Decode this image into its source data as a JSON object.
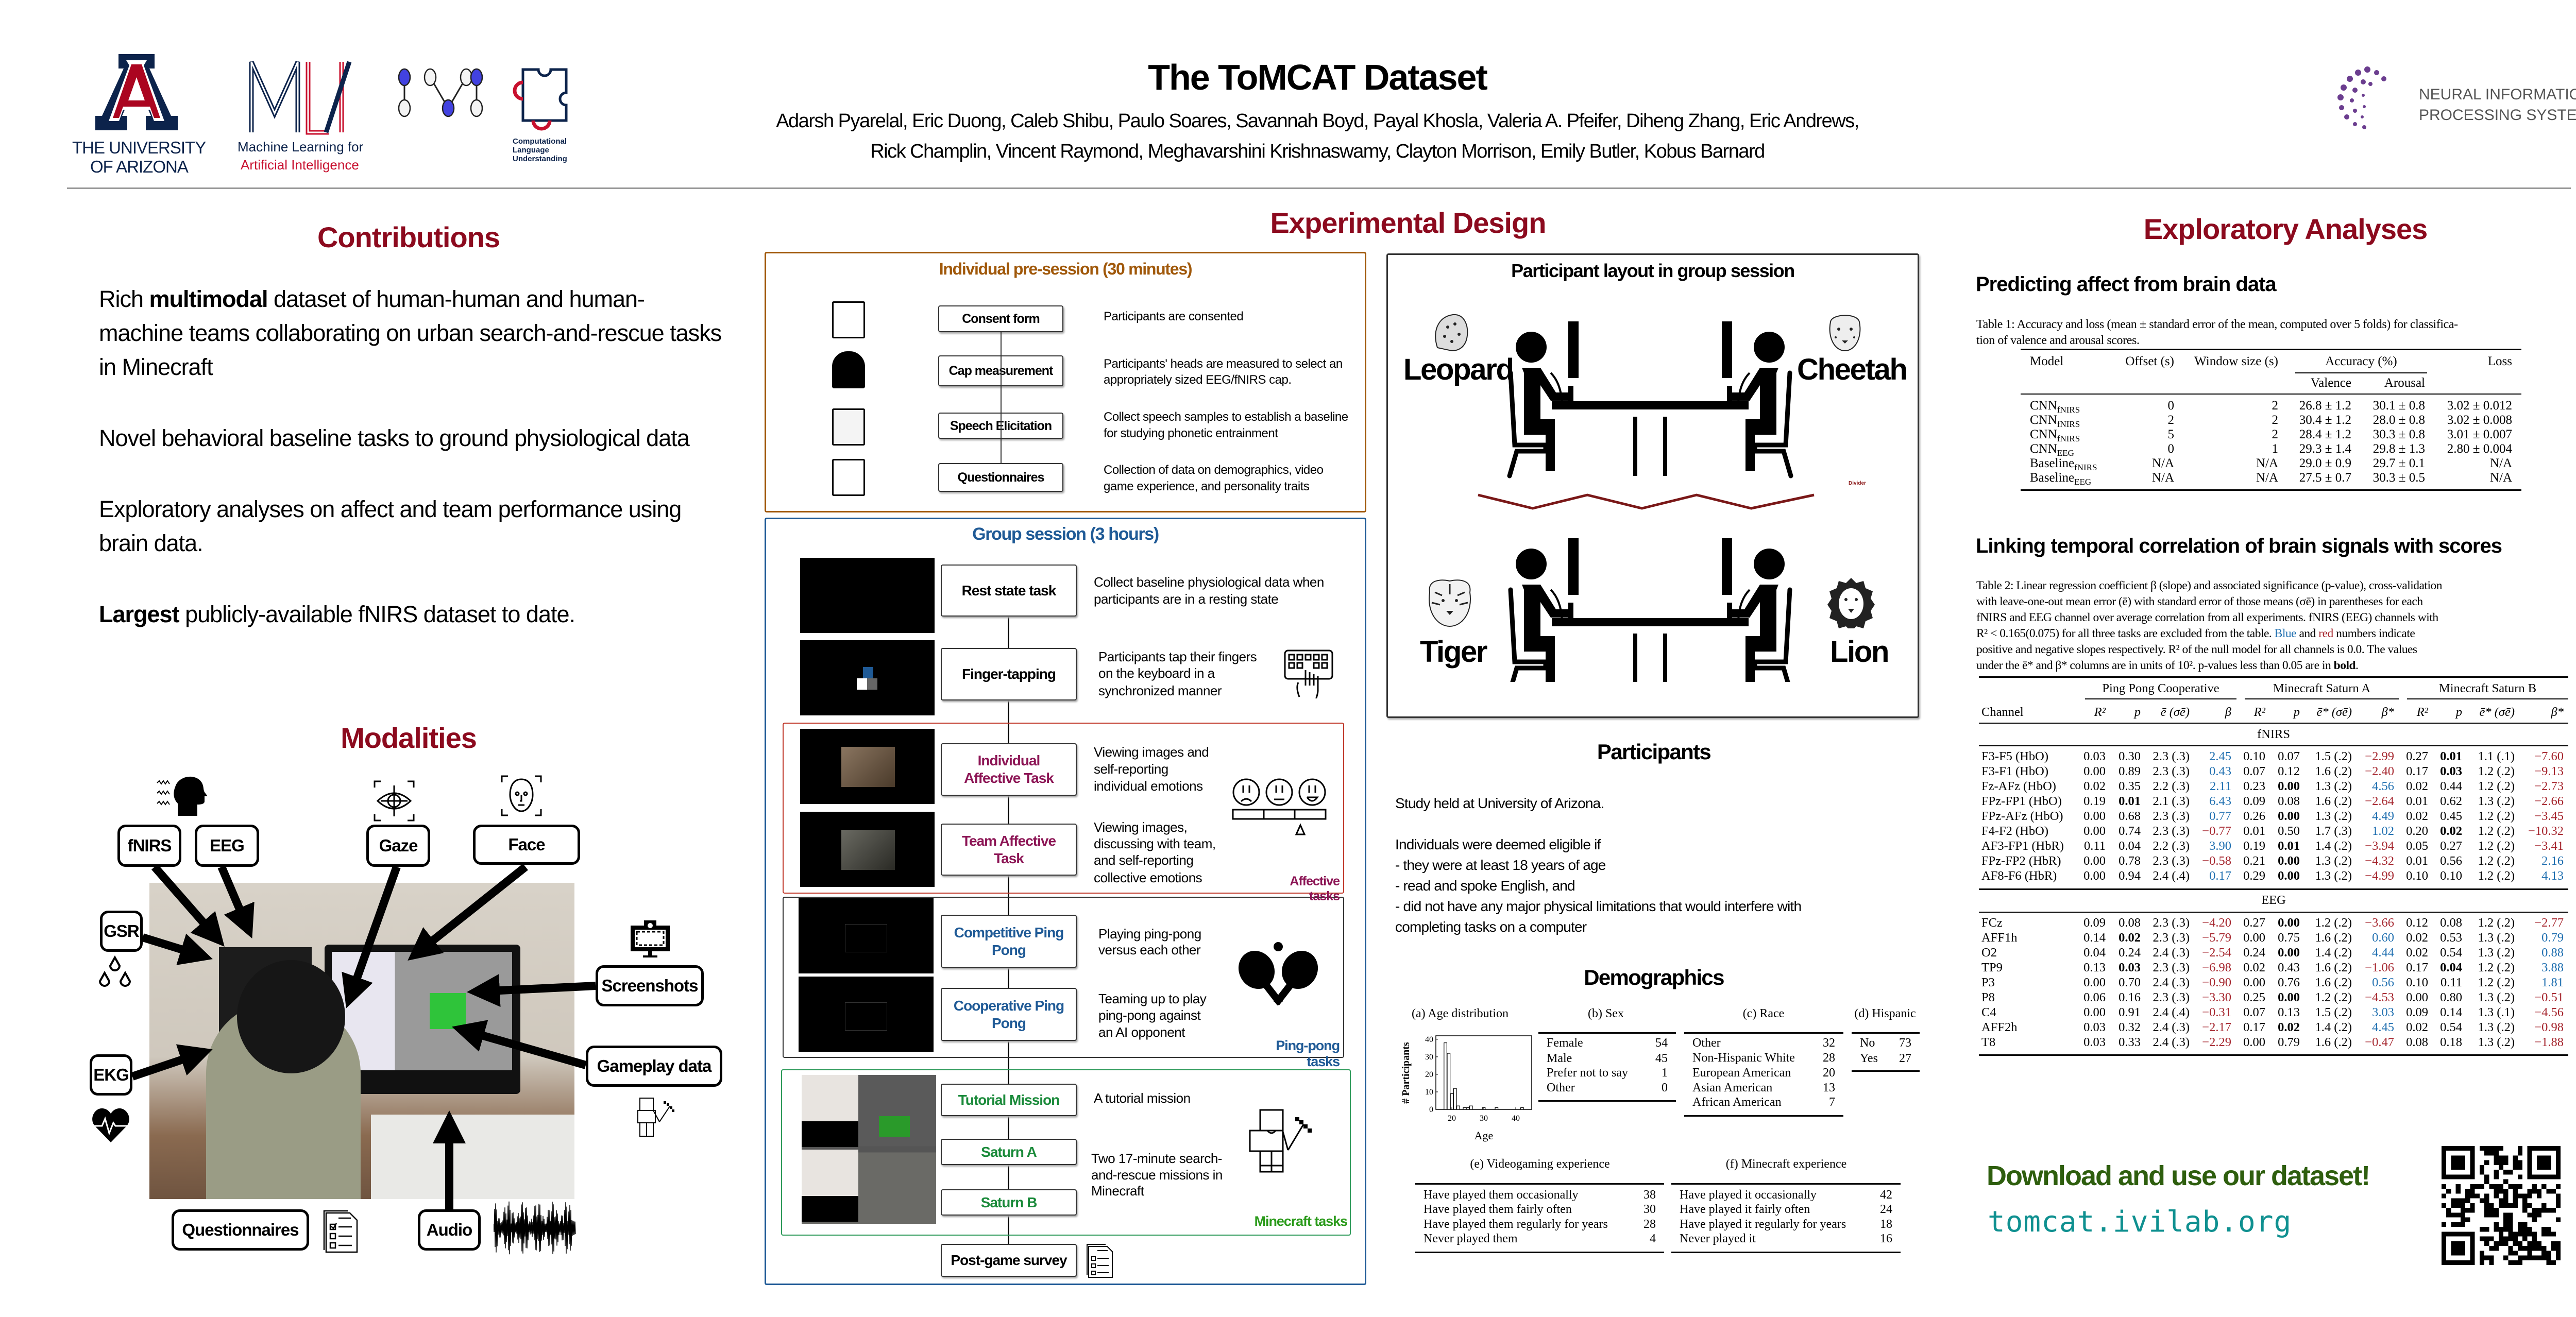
{
  "header": {
    "title": "The ToMCAT Dataset",
    "authors_line1": "Adarsh Pyarelal, Eric Duong, Caleb Shibu, Paulo Soares, Savannah Boyd, Payal Khosla, Valeria A. Pfeifer, Diheng Zhang, Eric Andrews,",
    "authors_line2": "Rick Champlin, Vincent Raymond, Meghavarshini Krishnaswamy, Clayton Morrison, Emily Butler, Kobus Barnard",
    "logos": {
      "ua_line1": "THE UNIVERSITY",
      "ua_line2": "OF ARIZONA",
      "mlai_line1": "Machine Learning for",
      "mlai_line2": "Artificial Intelligence",
      "clu_line1": "Computational",
      "clu_line2": "Language",
      "clu_line3": "Understanding",
      "neurips_line1": "NEURAL INFORMATION",
      "neurips_line2": "PROCESSING SYSTEMS"
    }
  },
  "colors": {
    "heading": "#8c0a1e",
    "presession": "#a0580a",
    "group": "#1f5a96",
    "affective": "#8c1555",
    "minecraft": "#1a8a3a",
    "positive": "#1f6fb0",
    "negative": "#a5252d",
    "download": "#2e5e0e",
    "url": "#0f9090"
  },
  "contributions": {
    "heading": "Contributions",
    "p1": {
      "a": "Rich ",
      "b": "multimodal",
      "c": " dataset of human-human and human-machine teams collaborating on urban search-and-rescue tasks in Minecraft"
    },
    "p2": "Novel behavioral baseline tasks to ground physiological data",
    "p3": "Exploratory analyses on affect and team performance using brain data.",
    "p4": {
      "b": "Largest",
      "c": " publicly-available fNIRS dataset to date."
    }
  },
  "modalities": {
    "heading": "Modalities",
    "labels": {
      "fnirs": "fNIRS",
      "eeg": "EEG",
      "gaze": "Gaze",
      "face": "Face",
      "gsr": "GSR",
      "ekg": "EKG",
      "screenshots": "Screenshots",
      "gameplay": "Gameplay data",
      "questionnaires": "Questionnaires",
      "audio": "Audio"
    }
  },
  "design": {
    "heading": "Experimental Design",
    "presession": {
      "title": "Individual pre-session (30 minutes)",
      "steps": [
        {
          "label": "Consent form",
          "desc": [
            "Participants are consented"
          ],
          "icon": "consent-form-icon"
        },
        {
          "label": "Cap measurement",
          "desc": [
            "Participants' heads are measured to select an",
            "appropriately sized EEG/fNIRS cap."
          ],
          "icon": "head-cap-icon"
        },
        {
          "label": "Speech Elicitation",
          "desc": [
            "Collect speech samples to establish a baseline",
            "for studying phonetic entrainment"
          ],
          "icon": "map-icon"
        },
        {
          "label": "Questionnaires",
          "desc": [
            "Collection of data on demographics, video",
            "game experience, and personality traits"
          ],
          "icon": "questionnaire-icon"
        }
      ]
    },
    "group": {
      "title": "Group session (3 hours)",
      "rest": {
        "label": "Rest state task",
        "desc": [
          "Collect baseline physiological data  when",
          "participants are in a resting state"
        ]
      },
      "finger": {
        "label": "Finger-tapping",
        "desc": [
          "Participants tap their fingers",
          "on the keyboard in a",
          "synchronized manner"
        ]
      },
      "ind_affective": {
        "label": "Individual Affective Task",
        "desc": [
          "Viewing images and",
          "self-reporting",
          "individual emotions"
        ]
      },
      "team_affective": {
        "label": "Team Affective Task",
        "desc": [
          "Viewing images,",
          "discussing with team,",
          "and self-reporting",
          "collective emotions"
        ]
      },
      "affective_group": "Affective tasks",
      "comp_pong": {
        "label": "Competitive Ping Pong",
        "desc": [
          "Playing ping-pong",
          "versus each other"
        ]
      },
      "coop_pong": {
        "label": "Cooperative Ping Pong",
        "desc": [
          "Teaming up to play",
          "ping-pong against",
          "an AI opponent"
        ]
      },
      "pong_group": "Ping-pong tasks",
      "tutorial": {
        "label": "Tutorial Mission",
        "desc": [
          "A tutorial mission"
        ]
      },
      "saturn_a": {
        "label": "Saturn A"
      },
      "saturn_b": {
        "label": "Saturn B"
      },
      "saturn_desc": [
        "Two 17-minute search-",
        "and-rescue missions in",
        "Minecraft"
      ],
      "minecraft_group": "Minecraft tasks",
      "postgame": {
        "label": "Post-game survey"
      }
    },
    "layout": {
      "title": "Participant layout in group session",
      "leopard": "Leopard",
      "cheetah": "Cheetah",
      "tiger": "Tiger",
      "lion": "Lion",
      "divider": "Divider"
    }
  },
  "participants": {
    "heading": "Participants",
    "location": "Study held at University of Arizona.",
    "eligibility_intro": "Individuals were deemed eligible if",
    "criteria": [
      "- they were at least 18 years of age",
      "- read and spoke English, and",
      "- did not have any major physical limitations that would interfere with",
      "completing tasks on a computer"
    ]
  },
  "demographics": {
    "heading": "Demographics",
    "age": {
      "caption": "(a) Age distribution",
      "xlabel": "Age",
      "ylabel": "# Participants",
      "x_ticks": [
        20,
        30,
        40
      ],
      "y_ticks": [
        0,
        10,
        20,
        30,
        40
      ],
      "xlim": [
        15,
        45
      ],
      "ylim": [
        0,
        42
      ],
      "bins": [
        {
          "age": 18,
          "count": 38
        },
        {
          "age": 19,
          "count": 32
        },
        {
          "age": 20,
          "count": 9
        },
        {
          "age": 21,
          "count": 12
        },
        {
          "age": 22,
          "count": 2
        },
        {
          "age": 24,
          "count": 1
        },
        {
          "age": 25,
          "count": 1
        },
        {
          "age": 26,
          "count": 2
        },
        {
          "age": 30,
          "count": 1
        },
        {
          "age": 34,
          "count": 1
        },
        {
          "age": 42,
          "count": 1
        }
      ]
    },
    "sex": {
      "caption": "(b) Sex",
      "rows": [
        [
          "Female",
          "54"
        ],
        [
          "Male",
          "45"
        ],
        [
          "Prefer not to say",
          "1"
        ],
        [
          "Other",
          "0"
        ]
      ]
    },
    "race": {
      "caption": "(c) Race",
      "rows": [
        [
          "Other",
          "32"
        ],
        [
          "Non-Hispanic White",
          "28"
        ],
        [
          "European American",
          "20"
        ],
        [
          "Asian American",
          "13"
        ],
        [
          "African American",
          "7"
        ]
      ]
    },
    "hispanic": {
      "caption": "(d) Hispanic",
      "rows": [
        [
          "No",
          "73"
        ],
        [
          "Yes",
          "27"
        ]
      ]
    },
    "videogaming": {
      "caption": "(e) Videogaming experience",
      "rows": [
        [
          "Have played them occasionally",
          "38"
        ],
        [
          "Have played them fairly often",
          "30"
        ],
        [
          "Have played them regularly for years",
          "28"
        ],
        [
          "Never played them",
          "4"
        ]
      ]
    },
    "minecraft": {
      "caption": "(f) Minecraft experience",
      "rows": [
        [
          "Have played it occasionally",
          "42"
        ],
        [
          "Have played it fairly often",
          "24"
        ],
        [
          "Have played it regularly for years",
          "18"
        ],
        [
          "Never played it",
          "16"
        ]
      ]
    }
  },
  "analyses": {
    "heading": "Exploratory Analyses",
    "affect": {
      "heading": "Predicting affect from brain data",
      "caption_line1": "Table 1: Accuracy and loss (mean ± standard error of the mean, computed over 5 folds) for classifica-",
      "caption_line2": "tion of valence and arousal scores.",
      "headers": {
        "model": "Model",
        "offset": "Offset (s)",
        "window": "Window size (s)",
        "accuracy": "Accuracy (%)",
        "valence": "Valence",
        "arousal": "Arousal",
        "loss": "Loss"
      },
      "rows": [
        {
          "model": "CNN",
          "sub": "fNIRS",
          "offset": "0",
          "window": "2",
          "valence": "26.8 ± 1.2",
          "arousal": "30.1 ± 0.8",
          "loss": "3.02 ± 0.012"
        },
        {
          "model": "CNN",
          "sub": "fNIRS",
          "offset": "2",
          "window": "2",
          "valence": "30.4 ± 1.2",
          "arousal": "28.0 ± 0.8",
          "loss": "3.02 ± 0.008"
        },
        {
          "model": "CNN",
          "sub": "fNIRS",
          "offset": "5",
          "window": "2",
          "valence": "28.4 ± 1.2",
          "arousal": "30.3 ± 0.8",
          "loss": "3.01 ± 0.007"
        },
        {
          "model": "CNN",
          "sub": "EEG",
          "offset": "0",
          "window": "1",
          "valence": "29.3 ± 1.4",
          "arousal": "29.8 ± 1.3",
          "loss": "2.80 ± 0.004"
        },
        {
          "model": "Baseline",
          "sub": "fNIRS",
          "offset": "N/A",
          "window": "N/A",
          "valence": "29.0 ± 0.9",
          "arousal": "29.7 ± 0.1",
          "loss": "N/A"
        },
        {
          "model": "Baseline",
          "sub": "EEG",
          "offset": "N/A",
          "window": "N/A",
          "valence": "27.5 ± 0.7",
          "arousal": "30.3 ± 0.5",
          "loss": "N/A"
        }
      ]
    },
    "correlation": {
      "heading": "Linking temporal correlation of brain signals with scores",
      "caption": {
        "l1": "Table 2: Linear regression coefficient β (slope) and associated significance (p-value), cross-validation",
        "l2": "with leave-one-out mean error (ē) with standard error of those means (σē) in parentheses for each",
        "l3": "fNIRS and EEG channel over average correlation from all experiments. fNIRS (EEG) channels with",
        "l4a": "R² < 0.165(0.075) for all three tasks are excluded from the table. ",
        "blue": "Blue",
        "l4b": " and ",
        "red": "red",
        "l4c": " numbers indicate",
        "l5": "positive and negative slopes respectively. R² of the null model for all channels is 0.0. The values",
        "l6a": "under the ē* and β* columns are in units of 10². p-values less than 0.05 are in ",
        "bold": "bold",
        "l6b": "."
      },
      "groups": [
        "Ping Pong Cooperative",
        "Minecraft Saturn A",
        "Minecraft Saturn B"
      ],
      "channel_header": "Channel",
      "columns": [
        "R²",
        "p",
        "ē (σē)",
        "β",
        "R²",
        "p",
        "ē* (σē)",
        "β*",
        "R²",
        "p",
        "ē* (σē)",
        "β*"
      ],
      "sections": [
        {
          "name": "fNIRS",
          "rows": [
            {
              "channel": "F3-F5 (HbO)",
              "cells": [
                "0.03",
                "0.30",
                "2.3 (.3)",
                "2.45",
                "0.10",
                "0.07",
                "1.5 (.2)",
                "−2.99",
                "0.27",
                "0.01",
                "1.1 (.1)",
                "−7.60"
              ],
              "bold": [
                9
              ]
            },
            {
              "channel": "F3-F1 (HbO)",
              "cells": [
                "0.00",
                "0.89",
                "2.3 (.3)",
                "0.43",
                "0.07",
                "0.12",
                "1.6 (.2)",
                "−2.40",
                "0.17",
                "0.03",
                "1.2 (.2)",
                "−9.13"
              ],
              "bold": [
                9
              ]
            },
            {
              "channel": "Fz-AFz (HbO)",
              "cells": [
                "0.02",
                "0.35",
                "2.2 (.3)",
                "2.11",
                "0.23",
                "0.00",
                "1.3 (.2)",
                "4.56",
                "0.02",
                "0.44",
                "1.2 (.2)",
                "−2.73"
              ],
              "bold": [
                5
              ]
            },
            {
              "channel": "FPz-FP1 (HbO)",
              "cells": [
                "0.19",
                "0.01",
                "2.1 (.3)",
                "6.43",
                "0.09",
                "0.08",
                "1.6 (.2)",
                "−2.64",
                "0.01",
                "0.62",
                "1.3 (.2)",
                "−2.66"
              ],
              "bold": [
                1
              ]
            },
            {
              "channel": "FPz-AFz (HbO)",
              "cells": [
                "0.00",
                "0.68",
                "2.3 (.3)",
                "0.77",
                "0.26",
                "0.00",
                "1.3 (.2)",
                "4.49",
                "0.02",
                "0.45",
                "1.2 (.2)",
                "−3.45"
              ],
              "bold": [
                5
              ]
            },
            {
              "channel": "F4-F2 (HbO)",
              "cells": [
                "0.00",
                "0.74",
                "2.3 (.3)",
                "−0.77",
                "0.01",
                "0.50",
                "1.7 (.3)",
                "1.02",
                "0.20",
                "0.02",
                "1.2 (.2)",
                "−10.32"
              ],
              "bold": [
                9
              ]
            },
            {
              "channel": "AF3-FP1 (HbR)",
              "cells": [
                "0.11",
                "0.04",
                "2.2 (.3)",
                "3.90",
                "0.19",
                "0.01",
                "1.4 (.2)",
                "−3.94",
                "0.05",
                "0.27",
                "1.2 (.2)",
                "−3.41"
              ],
              "bold": [
                5
              ]
            },
            {
              "channel": "FPz-FP2 (HbR)",
              "cells": [
                "0.00",
                "0.78",
                "2.3 (.3)",
                "−0.58",
                "0.21",
                "0.00",
                "1.3 (.2)",
                "−4.32",
                "0.01",
                "0.56",
                "1.2 (.2)",
                "2.16"
              ],
              "bold": [
                5
              ]
            },
            {
              "channel": "AF8-F6 (HbR)",
              "cells": [
                "0.00",
                "0.94",
                "2.4 (.4)",
                "0.17",
                "0.29",
                "0.00",
                "1.3 (.2)",
                "−4.99",
                "0.10",
                "0.10",
                "1.2 (.2)",
                "4.13"
              ],
              "bold": [
                5
              ]
            }
          ]
        },
        {
          "name": "EEG",
          "rows": [
            {
              "channel": "FCz",
              "cells": [
                "0.09",
                "0.08",
                "2.3 (.3)",
                "−4.20",
                "0.27",
                "0.00",
                "1.2 (.2)",
                "−3.66",
                "0.12",
                "0.08",
                "1.2 (.2)",
                "−2.77"
              ],
              "bold": [
                5
              ]
            },
            {
              "channel": "AFF1h",
              "cells": [
                "0.14",
                "0.02",
                "2.3 (.3)",
                "−5.79",
                "0.00",
                "0.75",
                "1.6 (.2)",
                "0.60",
                "0.02",
                "0.53",
                "1.3 (.2)",
                "0.79"
              ],
              "bold": [
                1
              ]
            },
            {
              "channel": "O2",
              "cells": [
                "0.04",
                "0.24",
                "2.4 (.3)",
                "−2.54",
                "0.24",
                "0.00",
                "1.4 (.2)",
                "4.44",
                "0.02",
                "0.54",
                "1.3 (.2)",
                "0.88"
              ],
              "bold": [
                5
              ]
            },
            {
              "channel": "TP9",
              "cells": [
                "0.13",
                "0.03",
                "2.3 (.3)",
                "−6.98",
                "0.02",
                "0.43",
                "1.6 (.2)",
                "−1.06",
                "0.17",
                "0.04",
                "1.2 (.2)",
                "3.88"
              ],
              "bold": [
                1,
                9
              ]
            },
            {
              "channel": "P3",
              "cells": [
                "0.00",
                "0.70",
                "2.4 (.3)",
                "−0.90",
                "0.00",
                "0.76",
                "1.6 (.2)",
                "0.56",
                "0.10",
                "0.11",
                "1.2 (.2)",
                "1.81"
              ],
              "bold": []
            },
            {
              "channel": "P8",
              "cells": [
                "0.06",
                "0.16",
                "2.3 (.3)",
                "−3.30",
                "0.25",
                "0.00",
                "1.2 (.2)",
                "−4.53",
                "0.00",
                "0.80",
                "1.3 (.2)",
                "−0.51"
              ],
              "bold": [
                5
              ]
            },
            {
              "channel": "C4",
              "cells": [
                "0.00",
                "0.91",
                "2.4 (.4)",
                "−0.31",
                "0.07",
                "0.13",
                "1.5 (.2)",
                "3.03",
                "0.09",
                "0.14",
                "1.3 (.1)",
                "−4.56"
              ],
              "bold": []
            },
            {
              "channel": "AFF2h",
              "cells": [
                "0.03",
                "0.32",
                "2.4 (.3)",
                "−2.17",
                "0.17",
                "0.02",
                "1.4 (.2)",
                "4.45",
                "0.02",
                "0.54",
                "1.3 (.2)",
                "−0.98"
              ],
              "bold": [
                5
              ]
            },
            {
              "channel": "T8",
              "cells": [
                "0.03",
                "0.33",
                "2.4 (.3)",
                "−2.29",
                "0.00",
                "0.79",
                "1.6 (.2)",
                "−0.47",
                "0.08",
                "0.18",
                "1.3 (.2)",
                "−1.88"
              ],
              "bold": []
            }
          ]
        }
      ]
    }
  },
  "download": {
    "text": "Download and use our dataset!",
    "url": "tomcat.ivilab.org"
  }
}
